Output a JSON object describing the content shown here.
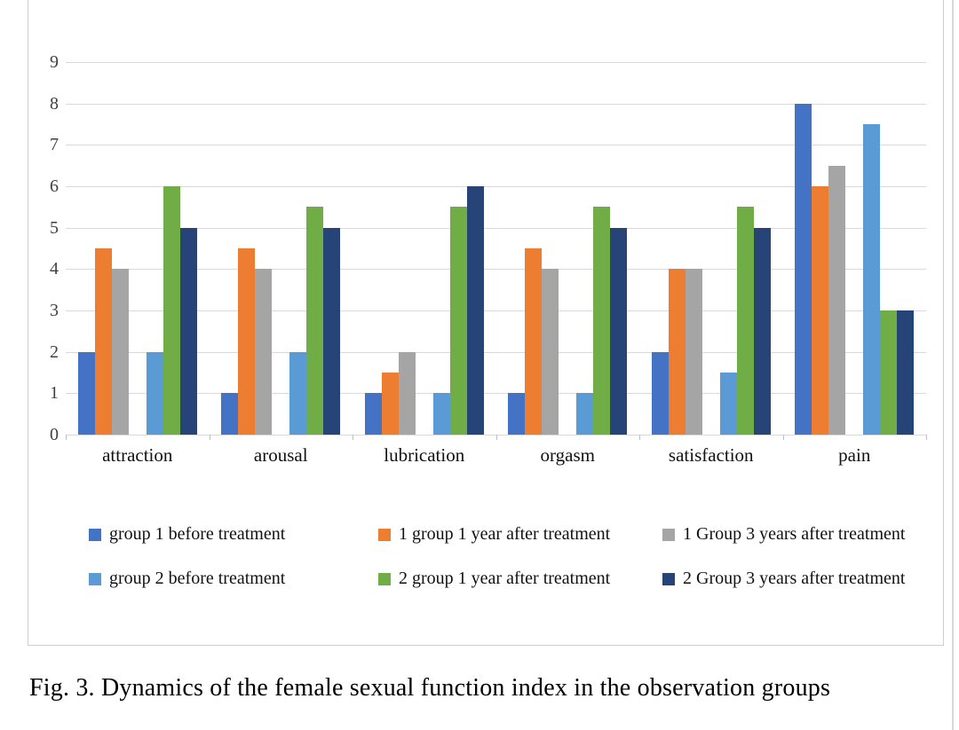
{
  "figure": {
    "caption": "Fig. 3. Dynamics of the female sexual function index in the observation groups"
  },
  "chart_data": {
    "type": "bar",
    "title": "",
    "xlabel": "",
    "ylabel": "",
    "categories": [
      "attraction",
      "arousal",
      "lubrication",
      "orgasm",
      "satisfaction",
      "pain"
    ],
    "series": [
      {
        "name": "group 1 before treatment",
        "color": "#4472C4",
        "values": [
          2,
          1,
          1,
          1,
          2,
          8
        ]
      },
      {
        "name": "1 group 1 year after treatment",
        "color": "#ED7D31",
        "values": [
          4.5,
          4.5,
          1.5,
          4.5,
          4,
          6
        ]
      },
      {
        "name": "1 Group 3 years after treatment",
        "color": "#A5A5A5",
        "values": [
          4,
          4,
          2,
          4,
          4,
          6.5
        ]
      },
      {
        "name": "group 2 before treatment",
        "color": "#5B9BD5",
        "values": [
          2,
          2,
          1,
          1,
          1.5,
          7.5
        ]
      },
      {
        "name": "2 group 1 year after treatment",
        "color": "#70AD47",
        "values": [
          6,
          5.5,
          5.5,
          5.5,
          5.5,
          3
        ]
      },
      {
        "name": "2 Group 3 years after treatment",
        "color": "#264478",
        "values": [
          5,
          5,
          6,
          5,
          5,
          3
        ]
      }
    ],
    "ylim": [
      0,
      9
    ],
    "ytick_step": 1,
    "yticks": [
      "0",
      "1",
      "2",
      "3",
      "4",
      "5",
      "6",
      "7",
      "8",
      "9"
    ],
    "grid": true,
    "legend_position": "bottom",
    "legend_rows": [
      [
        0,
        1,
        2
      ],
      [
        3,
        4,
        5
      ]
    ],
    "bar_clusters": [
      [
        0,
        1,
        2
      ],
      [
        3,
        4,
        5
      ]
    ]
  }
}
